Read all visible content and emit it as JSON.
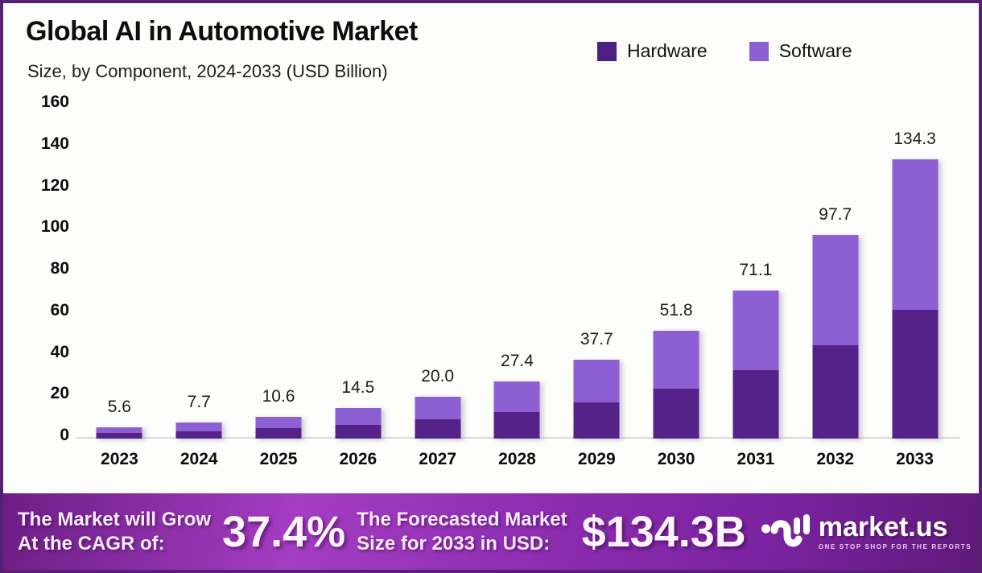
{
  "header": {
    "title": "Global AI in Automotive Market",
    "subtitle": "Size, by Component, 2024-2033 (USD Billion)"
  },
  "legend": {
    "items": [
      {
        "label": "Hardware",
        "color": "#4d2183"
      },
      {
        "label": "Software",
        "color": "#8c5fd3"
      }
    ]
  },
  "chart_data": {
    "type": "bar",
    "stacked": true,
    "title": "Global AI in Automotive Market Size, by Component, 2024-2033 (USD Billion)",
    "categories": [
      "2023",
      "2024",
      "2025",
      "2026",
      "2027",
      "2028",
      "2029",
      "2030",
      "2031",
      "2032",
      "2033"
    ],
    "series": [
      {
        "name": "Hardware",
        "color": "#552289",
        "values": [
          2.6,
          3.5,
          4.9,
          6.7,
          9.2,
          12.6,
          17.3,
          23.8,
          32.7,
          44.9,
          61.8
        ]
      },
      {
        "name": "Software",
        "color": "#8c5fd3",
        "values": [
          3.0,
          4.2,
          5.7,
          7.8,
          10.8,
          14.8,
          20.4,
          28.0,
          38.4,
          52.8,
          72.5
        ]
      }
    ],
    "totals": [
      5.6,
      7.7,
      10.6,
      14.5,
      20.0,
      27.4,
      37.7,
      51.8,
      71.1,
      97.7,
      134.3
    ],
    "total_labels": [
      "5.6",
      "7.7",
      "10.6",
      "14.5",
      "20.0",
      "27.4",
      "37.7",
      "51.8",
      "71.1",
      "97.7",
      "134.3"
    ],
    "yticks": [
      0,
      20,
      40,
      60,
      80,
      100,
      120,
      140,
      160
    ],
    "ylim": [
      0,
      160
    ],
    "xlabel": "",
    "ylabel": "",
    "grid": false,
    "legend_position": "top-right"
  },
  "footer": {
    "cagr_label_line1": "The Market will Grow",
    "cagr_label_line2": "At the CAGR of:",
    "cagr_value": "37.4%",
    "forecast_label_line1": "The Forecasted Market",
    "forecast_label_line2": "Size for 2033 in USD:",
    "forecast_value": "$134.3B",
    "brand": "market.us",
    "brand_tagline": "ONE STOP SHOP FOR THE REPORTS"
  },
  "colors": {
    "frame_border": "#572077",
    "background": "#fdfdfb",
    "hardware": "#552289",
    "software": "#8c5fd3",
    "axis_line": "#dadada",
    "footer_gradient_start": "#6d1e85",
    "footer_gradient_mid": "#a43dc2",
    "footer_gradient_end": "#601a7b"
  }
}
